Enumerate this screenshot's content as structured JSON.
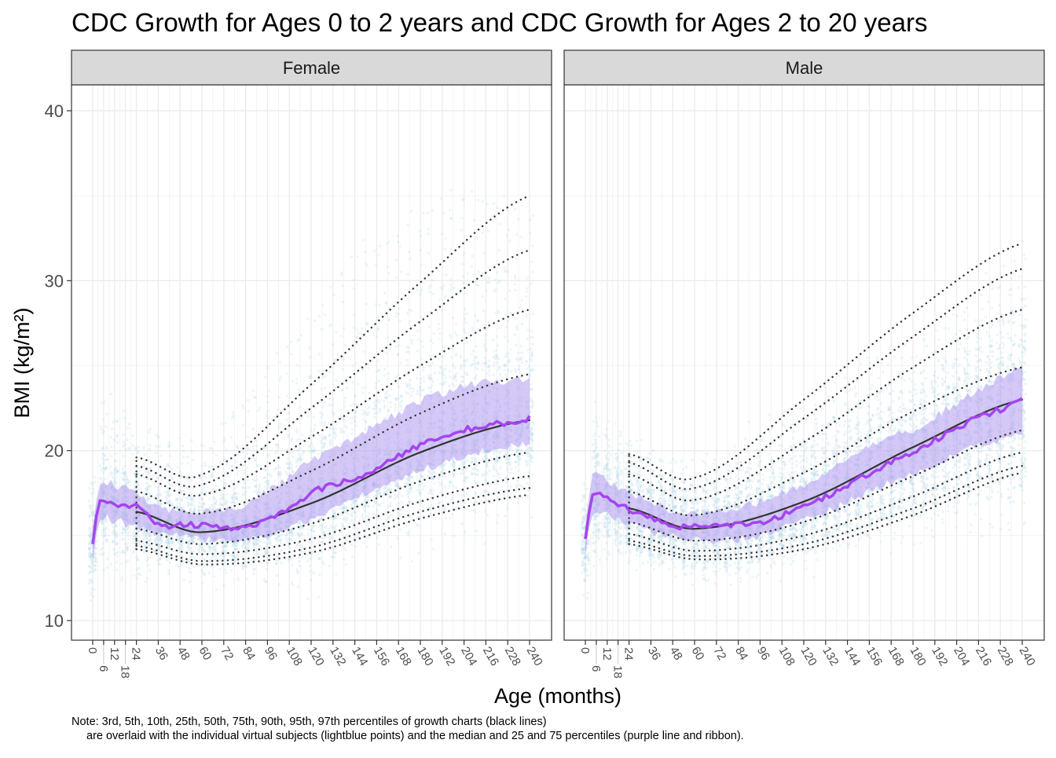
{
  "chart_data": {
    "type": "line",
    "title": "CDC Growth for Ages 0 to 2 years and CDC Growth for Ages 2 to 20 years",
    "xlabel": "Age (months)",
    "ylabel": "BMI (kg/m²)",
    "xlim": [
      0,
      240
    ],
    "ylim": [
      10,
      40
    ],
    "x_ticks": [
      0,
      6,
      12,
      18,
      24,
      36,
      48,
      60,
      72,
      84,
      96,
      108,
      120,
      132,
      144,
      156,
      168,
      180,
      192,
      204,
      216,
      228,
      240
    ],
    "y_ticks": [
      10,
      20,
      30,
      40
    ],
    "grid": true,
    "note_lines": [
      "Note: 3rd, 5th, 10th, 25th, 50th, 75th, 90th, 95th, 97th percentiles of growth charts (black lines)",
      "are overlaid with the individual virtual subjects (lightblue points) and the median and 25 and 75 percentiles (purple line and ribbon)."
    ],
    "colors": {
      "points": "#add8e6",
      "ribbon": "#b39af0",
      "median": "#a545ee",
      "percentiles": "#333333",
      "strip": "#d9d9d9"
    },
    "percentile_ages": [
      24,
      60,
      120,
      180,
      240
    ],
    "sim_ages": [
      0,
      3,
      6,
      12,
      18,
      24,
      36,
      48,
      60,
      72,
      84,
      96,
      108,
      120,
      132,
      144,
      156,
      168,
      180,
      192,
      204,
      216,
      228,
      240
    ],
    "panels": [
      {
        "label": "Female",
        "percentiles": [
          {
            "name": "3rd",
            "values": [
              14.2,
              13.3,
              14.0,
              16.0,
              17.4
            ]
          },
          {
            "name": "5th",
            "values": [
              14.4,
              13.5,
              14.3,
              16.4,
              17.8
            ]
          },
          {
            "name": "10th",
            "values": [
              14.7,
              13.9,
              14.8,
              17.0,
              18.5
            ]
          },
          {
            "name": "25th",
            "values": [
              15.4,
              14.5,
              15.7,
              18.2,
              19.9
            ]
          },
          {
            "name": "50th",
            "values": [
              16.4,
              15.2,
              16.9,
              19.9,
              21.8
            ]
          },
          {
            "name": "75th",
            "values": [
              17.6,
              16.3,
              18.8,
              22.2,
              24.5
            ]
          },
          {
            "name": "90th",
            "values": [
              18.6,
              17.4,
              20.8,
              25.0,
              28.3
            ]
          },
          {
            "name": "95th",
            "values": [
              19.1,
              18.0,
              22.5,
              27.6,
              31.8
            ]
          },
          {
            "name": "97th",
            "values": [
              19.6,
              18.6,
              23.9,
              29.9,
              35.0
            ]
          }
        ],
        "sim_median": [
          14.5,
          17.0,
          17.1,
          16.9,
          16.8,
          16.7,
          15.7,
          15.6,
          15.6,
          15.4,
          15.5,
          16.0,
          16.6,
          17.5,
          18.0,
          18.3,
          19.0,
          19.7,
          20.3,
          20.8,
          21.2,
          21.5,
          21.6,
          21.9
        ],
        "sim_p25": [
          13.5,
          15.5,
          16.0,
          15.9,
          15.7,
          15.5,
          15.0,
          14.9,
          14.8,
          14.7,
          14.8,
          15.1,
          15.5,
          16.0,
          16.6,
          17.2,
          17.8,
          18.3,
          18.8,
          19.3,
          19.7,
          20.0,
          20.2,
          20.5
        ],
        "sim_p75": [
          15.3,
          17.9,
          18.2,
          18.0,
          17.8,
          17.5,
          16.7,
          16.5,
          16.4,
          16.5,
          16.9,
          17.6,
          18.4,
          19.4,
          20.1,
          20.8,
          21.5,
          22.2,
          22.9,
          23.4,
          23.8,
          24.0,
          24.1,
          24.2
        ]
      },
      {
        "label": "Male",
        "percentiles": [
          {
            "name": "3rd",
            "values": [
              14.5,
              13.6,
              14.2,
              16.2,
              18.7
            ]
          },
          {
            "name": "5th",
            "values": [
              14.7,
              13.8,
              14.5,
              16.6,
              19.1
            ]
          },
          {
            "name": "10th",
            "values": [
              15.1,
              14.1,
              15.0,
              17.3,
              19.9
            ]
          },
          {
            "name": "25th",
            "values": [
              15.8,
              14.7,
              15.8,
              18.5,
              21.2
            ]
          },
          {
            "name": "50th",
            "values": [
              16.6,
              15.4,
              17.0,
              20.2,
              23.0
            ]
          },
          {
            "name": "75th",
            "values": [
              17.6,
              16.2,
              18.7,
              22.3,
              24.9
            ]
          },
          {
            "name": "90th",
            "values": [
              18.6,
              17.1,
              20.5,
              24.9,
              28.3
            ]
          },
          {
            "name": "95th",
            "values": [
              19.3,
              17.8,
              21.9,
              26.7,
              30.7
            ]
          },
          {
            "name": "97th",
            "values": [
              19.8,
              18.4,
              23.0,
              28.1,
              32.2
            ]
          }
        ],
        "sim_median": [
          14.8,
          17.2,
          17.4,
          17.2,
          16.9,
          16.5,
          16.0,
          15.6,
          15.5,
          15.5,
          15.7,
          15.7,
          16.2,
          16.8,
          17.3,
          18.0,
          18.6,
          19.3,
          19.9,
          20.6,
          21.3,
          22.0,
          22.4,
          22.9
        ],
        "sim_p25": [
          14.0,
          15.8,
          16.4,
          16.3,
          16.0,
          15.7,
          15.2,
          14.9,
          14.7,
          14.7,
          14.8,
          15.0,
          15.4,
          15.9,
          16.4,
          17.0,
          17.6,
          18.1,
          18.6,
          19.2,
          19.8,
          20.3,
          20.7,
          21.0
        ],
        "sim_p75": [
          15.5,
          18.2,
          18.5,
          18.2,
          17.9,
          17.5,
          16.9,
          16.5,
          16.3,
          16.4,
          16.7,
          17.0,
          17.5,
          18.0,
          18.7,
          19.5,
          20.2,
          20.8,
          21.2,
          22.0,
          22.8,
          23.6,
          24.3,
          25.0
        ]
      }
    ]
  }
}
